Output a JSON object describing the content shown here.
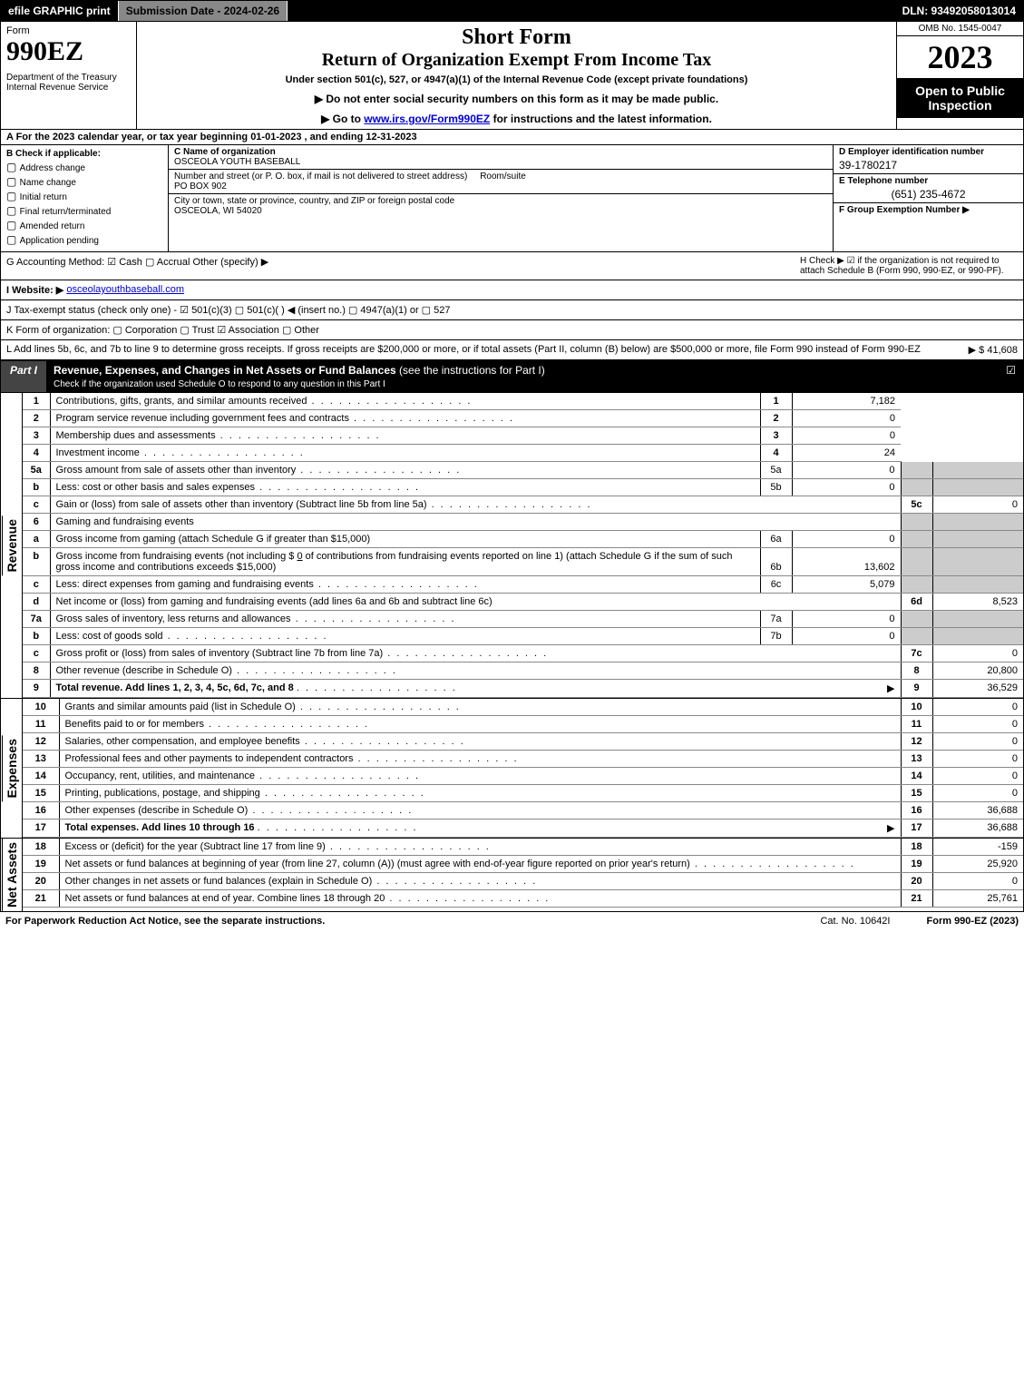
{
  "topbar": {
    "efile": "efile GRAPHIC print",
    "subdate": "Submission Date - 2024-02-26",
    "dln": "DLN: 93492058013014"
  },
  "header": {
    "form_label": "Form",
    "form_number": "990EZ",
    "dept": "Department of the Treasury\nInternal Revenue Service",
    "title1": "Short Form",
    "title2": "Return of Organization Exempt From Income Tax",
    "subtitle": "Under section 501(c), 527, or 4947(a)(1) of the Internal Revenue Code (except private foundations)",
    "note1": "▶ Do not enter social security numbers on this form as it may be made public.",
    "note2_pre": "▶ Go to ",
    "note2_link": "www.irs.gov/Form990EZ",
    "note2_post": " for instructions and the latest information.",
    "omb": "OMB No. 1545-0047",
    "year": "2023",
    "open": "Open to Public Inspection"
  },
  "a": {
    "text": "A  For the 2023 calendar year, or tax year beginning 01-01-2023 , and ending 12-31-2023"
  },
  "b": {
    "label": "B  Check if applicable:",
    "opts": [
      "Address change",
      "Name change",
      "Initial return",
      "Final return/terminated",
      "Amended return",
      "Application pending"
    ],
    "c_label": "C Name of organization",
    "c_name": "OSCEOLA YOUTH BASEBALL",
    "addr_label": "Number and street (or P. O. box, if mail is not delivered to street address)",
    "room_label": "Room/suite",
    "addr": "PO BOX 902",
    "city_label": "City or town, state or province, country, and ZIP or foreign postal code",
    "city": "OSCEOLA, WI  54020",
    "d_label": "D Employer identification number",
    "d_val": "39-1780217",
    "e_label": "E Telephone number",
    "e_val": "(651) 235-4672",
    "f_label": "F Group Exemption Number  ▶"
  },
  "g": {
    "text": "G Accounting Method:  ☑ Cash  ▢ Accrual  Other (specify) ▶",
    "h_text": "H  Check ▶ ☑ if the organization is not required to attach Schedule B (Form 990, 990-EZ, or 990-PF)."
  },
  "i": {
    "label": "I Website: ▶",
    "val": "osceolayouthbaseball.com"
  },
  "j": {
    "text": "J Tax-exempt status (check only one) - ☑ 501(c)(3) ▢ 501(c)( ) ◀ (insert no.) ▢ 4947(a)(1) or ▢ 527"
  },
  "k": {
    "text": "K Form of organization:  ▢ Corporation  ▢ Trust  ☑ Association  ▢ Other"
  },
  "l": {
    "text": "L Add lines 5b, 6c, and 7b to line 9 to determine gross receipts. If gross receipts are $200,000 or more, or if total assets (Part II, column (B) below) are $500,000 or more, file Form 990 instead of Form 990-EZ",
    "amt": "▶ $ 41,608"
  },
  "part1": {
    "tab": "Part I",
    "title": "Revenue, Expenses, and Changes in Net Assets or Fund Balances",
    "paren": "(see the instructions for Part I)",
    "sub": "Check if the organization used Schedule O to respond to any question in this Part I"
  },
  "revenue_side": "Revenue",
  "expenses_side": "Expenses",
  "netassets_side": "Net Assets",
  "lines": {
    "1": {
      "n": "1",
      "d": "Contributions, gifts, grants, and similar amounts received",
      "r": "1",
      "v": "7,182"
    },
    "2": {
      "n": "2",
      "d": "Program service revenue including government fees and contracts",
      "r": "2",
      "v": "0"
    },
    "3": {
      "n": "3",
      "d": "Membership dues and assessments",
      "r": "3",
      "v": "0"
    },
    "4": {
      "n": "4",
      "d": "Investment income",
      "r": "4",
      "v": "24"
    },
    "5a": {
      "n": "5a",
      "d": "Gross amount from sale of assets other than inventory",
      "sn": "5a",
      "sv": "0"
    },
    "5b": {
      "n": "b",
      "d": "Less: cost or other basis and sales expenses",
      "sn": "5b",
      "sv": "0"
    },
    "5c": {
      "n": "c",
      "d": "Gain or (loss) from sale of assets other than inventory (Subtract line 5b from line 5a)",
      "r": "5c",
      "v": "0"
    },
    "6": {
      "n": "6",
      "d": "Gaming and fundraising events"
    },
    "6a": {
      "n": "a",
      "d": "Gross income from gaming (attach Schedule G if greater than $15,000)",
      "sn": "6a",
      "sv": "0"
    },
    "6b": {
      "n": "b",
      "d1": "Gross income from fundraising events (not including $ ",
      "d1b": "0",
      "d2": " of contributions from fundraising events reported on line 1) (attach Schedule G if the sum of such gross income and contributions exceeds $15,000)",
      "sn": "6b",
      "sv": "13,602"
    },
    "6c": {
      "n": "c",
      "d": "Less: direct expenses from gaming and fundraising events",
      "sn": "6c",
      "sv": "5,079"
    },
    "6d": {
      "n": "d",
      "d": "Net income or (loss) from gaming and fundraising events (add lines 6a and 6b and subtract line 6c)",
      "r": "6d",
      "v": "8,523"
    },
    "7a": {
      "n": "7a",
      "d": "Gross sales of inventory, less returns and allowances",
      "sn": "7a",
      "sv": "0"
    },
    "7b": {
      "n": "b",
      "d": "Less: cost of goods sold",
      "sn": "7b",
      "sv": "0"
    },
    "7c": {
      "n": "c",
      "d": "Gross profit or (loss) from sales of inventory (Subtract line 7b from line 7a)",
      "r": "7c",
      "v": "0"
    },
    "8": {
      "n": "8",
      "d": "Other revenue (describe in Schedule O)",
      "r": "8",
      "v": "20,800"
    },
    "9": {
      "n": "9",
      "d": "Total revenue. Add lines 1, 2, 3, 4, 5c, 6d, 7c, and 8",
      "arrow": "▶",
      "r": "9",
      "v": "36,529"
    },
    "10": {
      "n": "10",
      "d": "Grants and similar amounts paid (list in Schedule O)",
      "r": "10",
      "v": "0"
    },
    "11": {
      "n": "11",
      "d": "Benefits paid to or for members",
      "r": "11",
      "v": "0"
    },
    "12": {
      "n": "12",
      "d": "Salaries, other compensation, and employee benefits",
      "r": "12",
      "v": "0"
    },
    "13": {
      "n": "13",
      "d": "Professional fees and other payments to independent contractors",
      "r": "13",
      "v": "0"
    },
    "14": {
      "n": "14",
      "d": "Occupancy, rent, utilities, and maintenance",
      "r": "14",
      "v": "0"
    },
    "15": {
      "n": "15",
      "d": "Printing, publications, postage, and shipping",
      "r": "15",
      "v": "0"
    },
    "16": {
      "n": "16",
      "d": "Other expenses (describe in Schedule O)",
      "r": "16",
      "v": "36,688"
    },
    "17": {
      "n": "17",
      "d": "Total expenses. Add lines 10 through 16",
      "arrow": "▶",
      "r": "17",
      "v": "36,688"
    },
    "18": {
      "n": "18",
      "d": "Excess or (deficit) for the year (Subtract line 17 from line 9)",
      "r": "18",
      "v": "-159"
    },
    "19": {
      "n": "19",
      "d": "Net assets or fund balances at beginning of year (from line 27, column (A)) (must agree with end-of-year figure reported on prior year's return)",
      "r": "19",
      "v": "25,920"
    },
    "20": {
      "n": "20",
      "d": "Other changes in net assets or fund balances (explain in Schedule O)",
      "r": "20",
      "v": "0"
    },
    "21": {
      "n": "21",
      "d": "Net assets or fund balances at end of year. Combine lines 18 through 20",
      "r": "21",
      "v": "25,761"
    }
  },
  "footer": {
    "left": "For Paperwork Reduction Act Notice, see the separate instructions.",
    "center": "Cat. No. 10642I",
    "right": "Form 990-EZ (2023)"
  }
}
